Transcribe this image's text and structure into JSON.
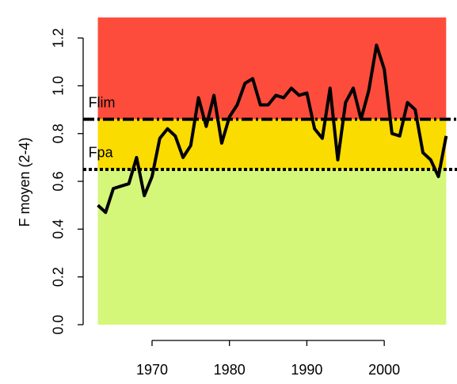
{
  "chart_data": {
    "type": "line",
    "ylabel": "F moyen (2-4)",
    "x": [
      1963,
      1964,
      1965,
      1966,
      1967,
      1968,
      1969,
      1970,
      1971,
      1972,
      1973,
      1974,
      1975,
      1976,
      1977,
      1978,
      1979,
      1980,
      1981,
      1982,
      1983,
      1984,
      1985,
      1986,
      1987,
      1988,
      1989,
      1990,
      1991,
      1992,
      1993,
      1994,
      1995,
      1996,
      1997,
      1998,
      1999,
      2000,
      2001,
      2002,
      2003,
      2004,
      2005,
      2006,
      2007,
      2008
    ],
    "series": [
      {
        "color": "#000000",
        "values": [
          0.5,
          0.47,
          0.57,
          0.58,
          0.59,
          0.7,
          0.54,
          0.62,
          0.78,
          0.82,
          0.79,
          0.7,
          0.75,
          0.95,
          0.83,
          0.96,
          0.76,
          0.87,
          0.92,
          1.01,
          1.03,
          0.92,
          0.92,
          0.96,
          0.95,
          0.99,
          0.96,
          0.97,
          0.82,
          0.78,
          0.99,
          0.69,
          0.93,
          0.99,
          0.86,
          0.98,
          1.17,
          1.07,
          0.8,
          0.79,
          0.93,
          0.9,
          0.72,
          0.69,
          0.62,
          0.79
        ]
      }
    ],
    "xlim": [
      1961.1,
      2009.4
    ],
    "ylim": [
      -0.066,
      1.326
    ],
    "xticks": [
      1970,
      1980,
      1990,
      2000
    ],
    "yticks": [
      {
        "value": 0,
        "label": "0.0"
      },
      0.2,
      0.4,
      0.6,
      0.8,
      {
        "value": 1,
        "label": "1.0"
      },
      1.2
    ],
    "zones": [
      {
        "from": 0,
        "to": 0.65,
        "color": "#d4f779"
      },
      {
        "from": 0.65,
        "to": 0.86,
        "color": "#fbdc00"
      },
      {
        "from": 0.86,
        "to": 1.286,
        "color": "#fe4c3c"
      }
    ],
    "reference_lines": [
      {
        "name": "Flim",
        "value": 0.86,
        "style": "dashdot"
      },
      {
        "name": "Fpa",
        "value": 0.65,
        "style": "dotted"
      }
    ]
  }
}
